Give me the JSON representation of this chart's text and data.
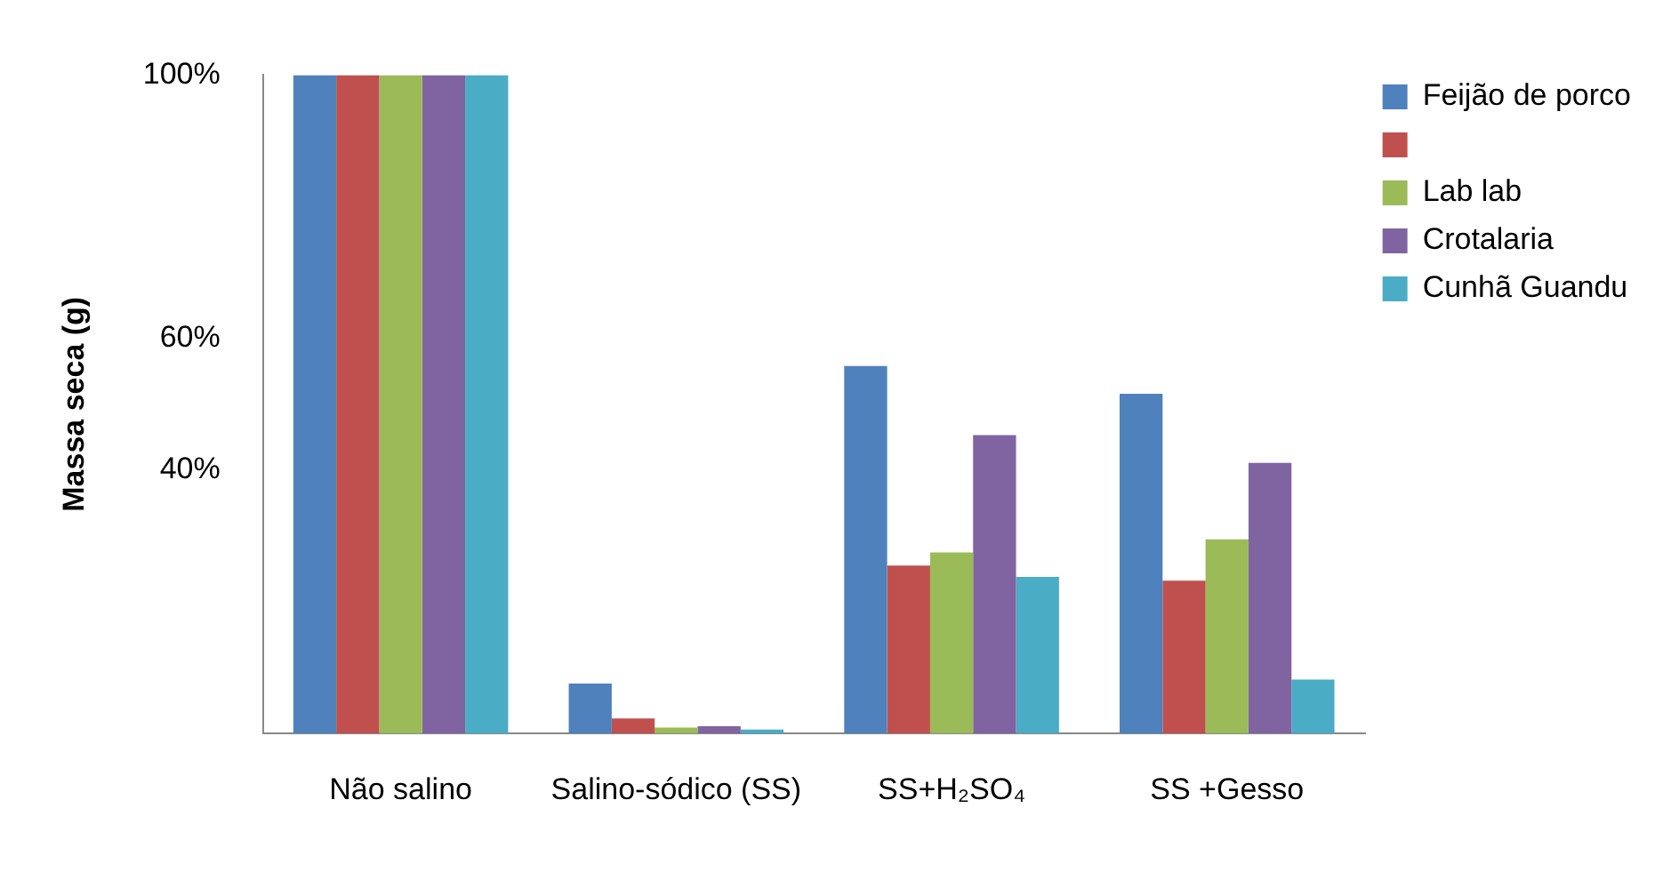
{
  "chart_data": {
    "type": "bar",
    "ylabel": "Massa seca (g)",
    "categories": [
      "Não salino",
      "Salino-sódico (SS)",
      "SS+H₂SO₄",
      "SS +Gesso"
    ],
    "series": [
      {
        "name": "Feijão de porco",
        "color": "#4f81bd",
        "values": [
          100,
          7.6,
          55.8,
          51.6
        ]
      },
      {
        "color": "#c0504d",
        "values": [
          100,
          2.3,
          25.5,
          23.2
        ]
      },
      {
        "name": "Lab lab",
        "color": "#9bbb59",
        "values": [
          100,
          0.9,
          27.5,
          29.5
        ]
      },
      {
        "name": "Crotalaria",
        "color": "#8064a2",
        "values": [
          100,
          1.1,
          45.3,
          41.1
        ]
      },
      {
        "name": "Cunhã Guandu",
        "color": "#4bacc6",
        "values": [
          100,
          0.6,
          23.8,
          8.2
        ]
      }
    ],
    "ylim": [
      0,
      100
    ],
    "yticks": [
      {
        "value": 40,
        "label": "40%"
      },
      {
        "value": 60,
        "label": "60%"
      },
      {
        "value": 100,
        "label": "100%"
      }
    ],
    "grid": false,
    "legend": "top right"
  }
}
